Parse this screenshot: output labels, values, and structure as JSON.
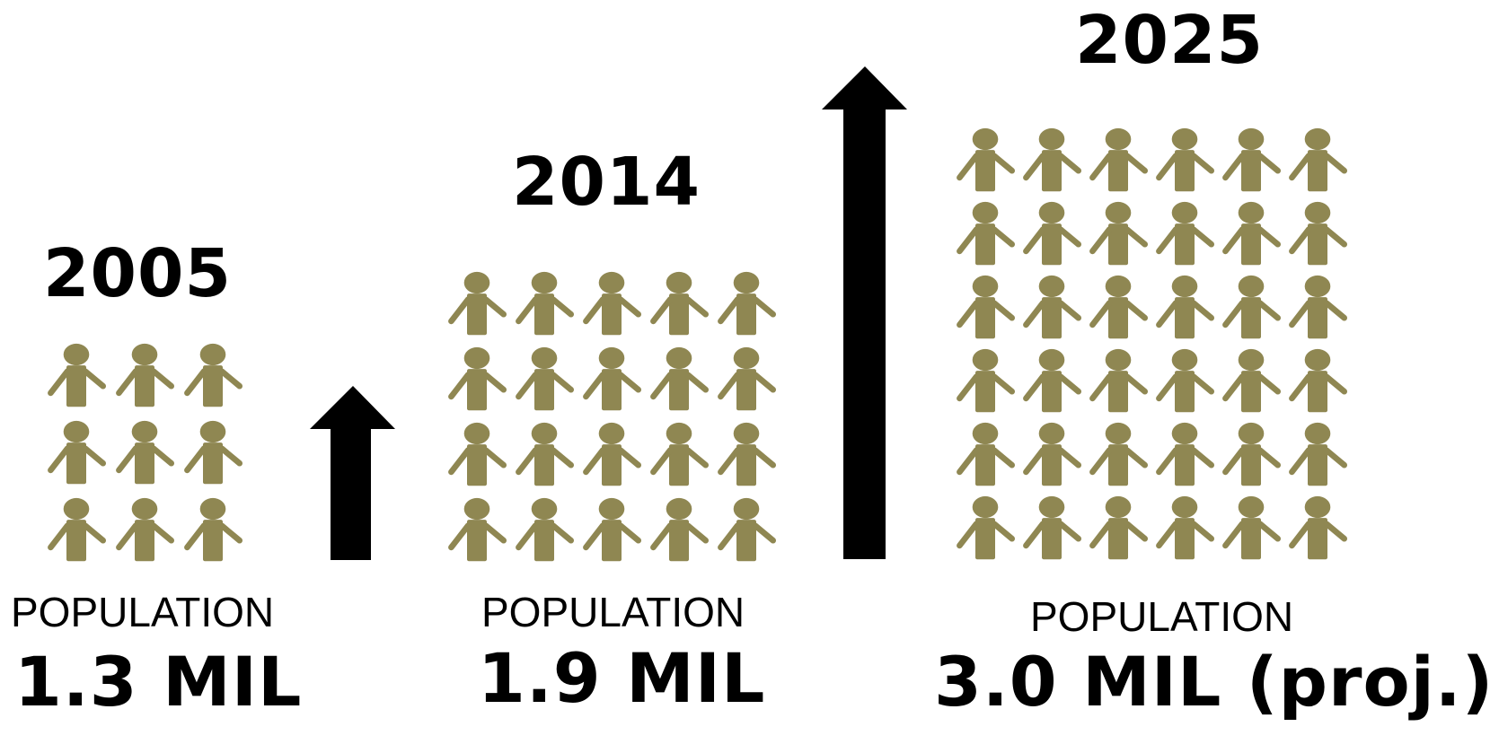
{
  "colors": {
    "person": "#8f8752",
    "text": "#000000",
    "arrow": "#000000"
  },
  "icon": "person-icon",
  "chart_data": {
    "type": "pictograph",
    "groups": [
      {
        "year": "2005",
        "label": "POPULATION",
        "value_text": "1.3 MIL",
        "value": 1.3,
        "icon_count": 9,
        "columns": 3
      },
      {
        "year": "2014",
        "label": "POPULATION",
        "value_text": "1.9 MIL",
        "value": 1.9,
        "icon_count": 20,
        "columns": 5
      },
      {
        "year": "2025",
        "label": "POPULATION",
        "value_text": "3.0 MIL (proj.)",
        "value": 3.0,
        "icon_count": 36,
        "columns": 6,
        "projected": true
      }
    ],
    "arrows": [
      {
        "from": "2005",
        "to": "2014",
        "direction": "up"
      },
      {
        "from": "2014",
        "to": "2025",
        "direction": "up"
      }
    ]
  }
}
